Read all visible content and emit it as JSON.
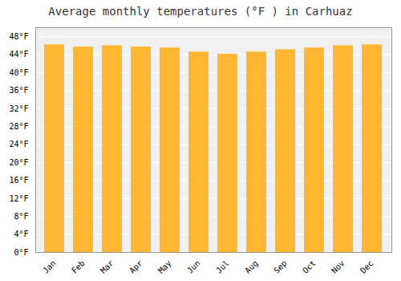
{
  "chart_data": {
    "type": "bar",
    "title": "Average monthly temperatures (°F ) in Carhuaz",
    "categories": [
      "Jan",
      "Feb",
      "Mar",
      "Apr",
      "May",
      "Jun",
      "Jul",
      "Aug",
      "Sep",
      "Oct",
      "Nov",
      "Dec"
    ],
    "values": [
      46.2,
      45.7,
      46.0,
      45.7,
      45.5,
      44.6,
      44.1,
      44.6,
      45.1,
      45.5,
      46.0,
      46.2
    ],
    "color": "#FFB733",
    "ylim": [
      0,
      50
    ],
    "yticks": [
      {
        "value": 0,
        "label": "0°F"
      },
      {
        "value": 4,
        "label": "4°F"
      },
      {
        "value": 8,
        "label": "8°F"
      },
      {
        "value": 12,
        "label": "12°F"
      },
      {
        "value": 16,
        "label": "16°F"
      },
      {
        "value": 20,
        "label": "20°F"
      },
      {
        "value": 24,
        "label": "24°F"
      },
      {
        "value": 28,
        "label": "28°F"
      },
      {
        "value": 32,
        "label": "32°F"
      },
      {
        "value": 36,
        "label": "36°F"
      },
      {
        "value": 40,
        "label": "40°F"
      },
      {
        "value": 44,
        "label": "44°F"
      },
      {
        "value": 48,
        "label": "48°F"
      }
    ],
    "grid": true
  }
}
